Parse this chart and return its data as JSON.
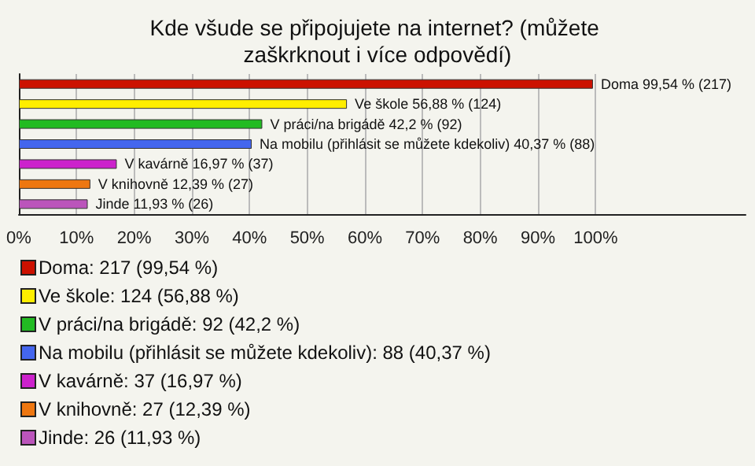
{
  "chart_data": {
    "type": "bar",
    "orientation": "horizontal",
    "stacked": true,
    "title": "Kde všude se připojujete na internet? (můžete zaškrknout i více odpovědí)",
    "categories": [
      null,
      null,
      null,
      null,
      null,
      null,
      null
    ],
    "series": [
      {
        "name": "Doma: 217 (99,54 %)",
        "color": "#cc1100",
        "values": [
          99.54,
          null,
          null,
          null,
          null,
          null,
          null
        ],
        "value_labels": [
          "Doma 99,54 % (217)",
          null,
          null,
          null,
          null,
          null,
          null
        ]
      },
      {
        "name": "Ve škole: 124 (56,88 %)",
        "color": "#ffee00",
        "values": [
          null,
          56.88,
          null,
          null,
          null,
          null,
          null
        ],
        "value_labels": [
          null,
          "Ve škole 56,88 % (124)",
          null,
          null,
          null,
          null,
          null
        ]
      },
      {
        "name": "V práci/na brigádě: 92 (42,2 %)",
        "color": "#22bb22",
        "values": [
          null,
          null,
          42.2,
          null,
          null,
          null,
          null
        ],
        "value_labels": [
          null,
          null,
          "V práci/na brigádě 42,2 % (92)",
          null,
          null,
          null,
          null
        ]
      },
      {
        "name": "Na mobilu (přihlásit se můžete kdekoliv): 88 (40,37 %)",
        "color": "#4466ee",
        "values": [
          null,
          null,
          null,
          40.37,
          null,
          null,
          null
        ],
        "value_labels": [
          null,
          null,
          null,
          "Na mobilu (přihlásit se můžete kdekoliv) 40,37 % (88)",
          null,
          null,
          null
        ]
      },
      {
        "name": "V kavárně: 37 (16,97 %)",
        "color": "#cc22cc",
        "values": [
          null,
          null,
          null,
          null,
          16.97,
          null,
          null
        ],
        "value_labels": [
          null,
          null,
          null,
          null,
          "V kavárně 16,97 % (37)",
          null,
          null
        ]
      },
      {
        "name": "V knihovně: 27 (12,39 %)",
        "color": "#ee7711",
        "values": [
          null,
          null,
          null,
          null,
          null,
          12.39,
          null
        ],
        "value_labels": [
          null,
          null,
          null,
          null,
          null,
          "V knihovně 12,39 % (27)",
          null
        ]
      },
      {
        "name": "Jinde: 26 (11,93 %)",
        "color": "#bb55bb",
        "values": [
          null,
          null,
          null,
          null,
          null,
          null,
          11.93
        ],
        "value_labels": [
          null,
          null,
          null,
          null,
          null,
          null,
          "Jinde 11,93 % (26)"
        ]
      }
    ],
    "xlim": [
      0,
      126
    ],
    "xticks": [
      {
        "value": 0,
        "label": "0%"
      },
      {
        "value": 10,
        "label": "10%"
      },
      {
        "value": 20,
        "label": "20%"
      },
      {
        "value": 30,
        "label": "30%"
      },
      {
        "value": 40,
        "label": "40%"
      },
      {
        "value": 50,
        "label": "50%"
      },
      {
        "value": 60,
        "label": "60%"
      },
      {
        "value": 70,
        "label": "70%"
      },
      {
        "value": 80,
        "label": "80%"
      },
      {
        "value": 90,
        "label": "90%"
      },
      {
        "value": 100,
        "label": "100%"
      }
    ],
    "tick_labels": "x",
    "grid": "x",
    "legend": "bottom left"
  }
}
